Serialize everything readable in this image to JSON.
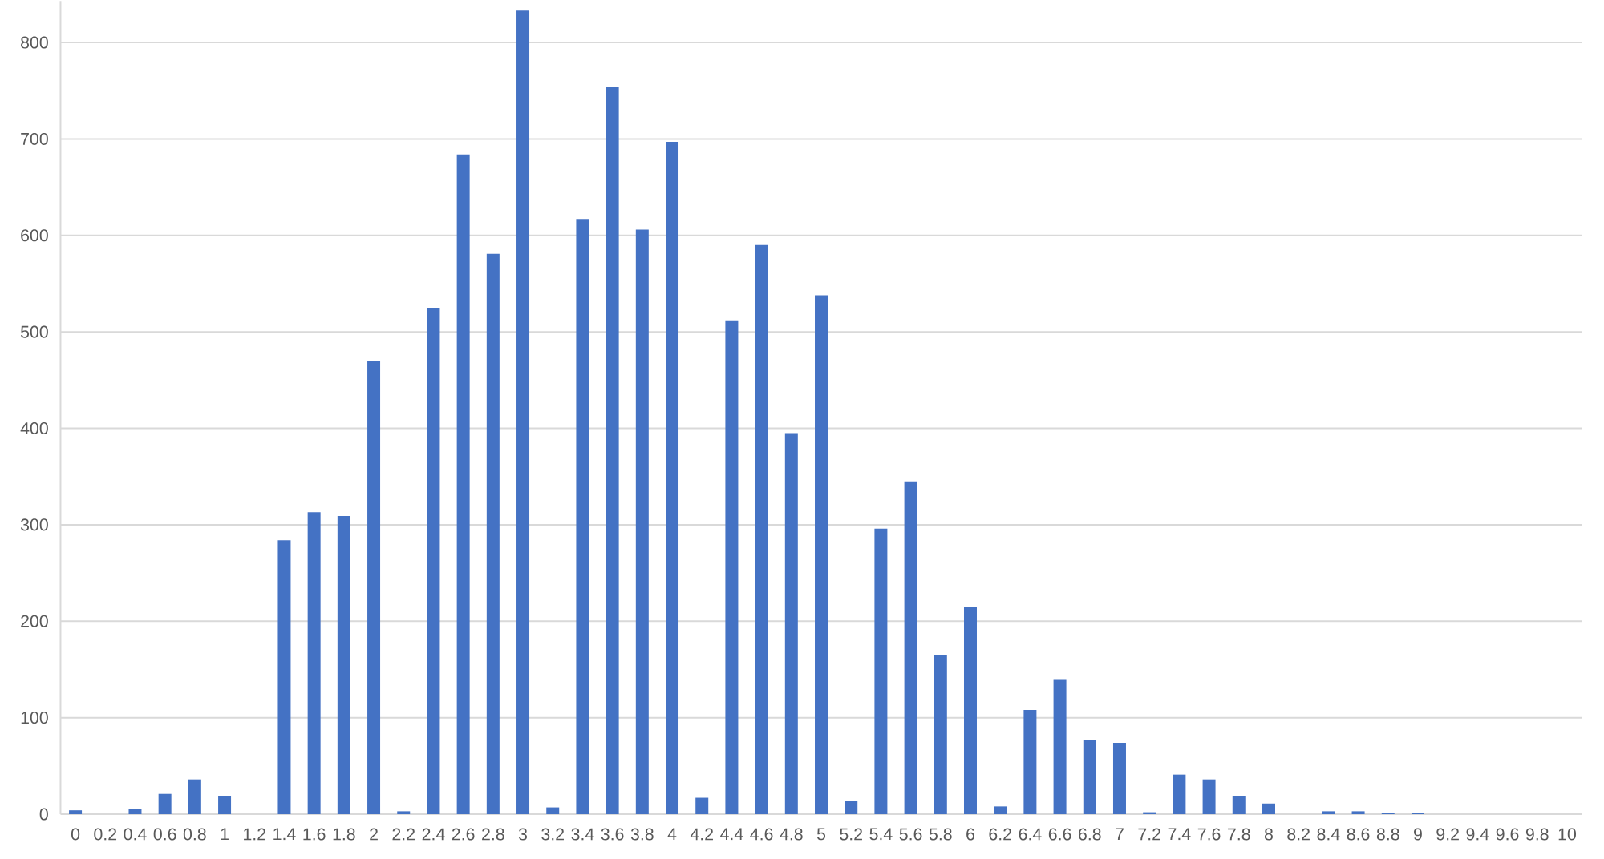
{
  "chart_data": {
    "type": "bar",
    "categories": [
      "0",
      "0.2",
      "0.4",
      "0.6",
      "0.8",
      "1",
      "1.2",
      "1.4",
      "1.6",
      "1.8",
      "2",
      "2.2",
      "2.4",
      "2.6",
      "2.8",
      "3",
      "3.2",
      "3.4",
      "3.6",
      "3.8",
      "4",
      "4.2",
      "4.4",
      "4.6",
      "4.8",
      "5",
      "5.2",
      "5.4",
      "5.6",
      "5.8",
      "6",
      "6.2",
      "6.4",
      "6.6",
      "6.8",
      "7",
      "7.2",
      "7.4",
      "7.6",
      "7.8",
      "8",
      "8.2",
      "8.4",
      "8.6",
      "8.8",
      "9",
      "9.2",
      "9.4",
      "9.6",
      "9.8",
      "10"
    ],
    "values": [
      4,
      0,
      5,
      21,
      36,
      19,
      0,
      284,
      313,
      309,
      470,
      3,
      525,
      684,
      581,
      833,
      7,
      617,
      754,
      606,
      697,
      17,
      512,
      590,
      395,
      538,
      14,
      296,
      345,
      165,
      215,
      8,
      108,
      140,
      77,
      74,
      2,
      41,
      36,
      19,
      11,
      0,
      3,
      3,
      1,
      1,
      0,
      0,
      0,
      0,
      0
    ],
    "color": "#4472c4",
    "ylim": [
      0,
      843
    ],
    "yticks": [
      0,
      100,
      200,
      300,
      400,
      500,
      600,
      700,
      800
    ],
    "grid": "y"
  }
}
